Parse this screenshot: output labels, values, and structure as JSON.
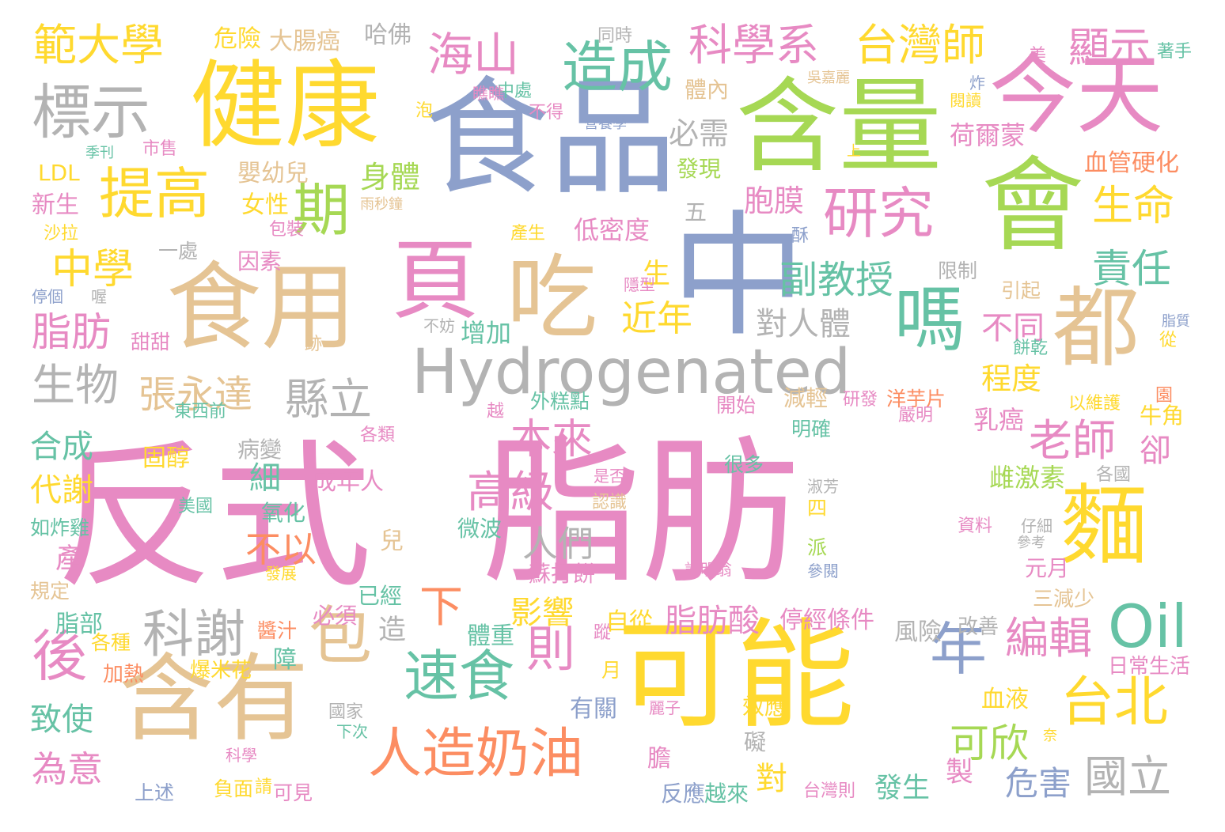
{
  "palette": {
    "pink": "#e78ac3",
    "tan": "#e5c494",
    "yellow": "#ffd92f",
    "green": "#a6d854",
    "teal": "#66c2a5",
    "blue": "#8da0cb",
    "orange": "#fc8d62",
    "gray": "#b3b3b3"
  },
  "words": [
    {
      "text": "反式",
      "color": "pink"
    },
    {
      "text": "脂肪",
      "color": "pink"
    },
    {
      "text": "食品",
      "color": "blue"
    },
    {
      "text": "中",
      "color": "blue"
    },
    {
      "text": "會",
      "color": "green"
    },
    {
      "text": "含量",
      "color": "green"
    },
    {
      "text": "今天",
      "color": "pink"
    },
    {
      "text": "健康",
      "color": "yellow"
    },
    {
      "text": "食用",
      "color": "tan"
    },
    {
      "text": "含有",
      "color": "tan"
    },
    {
      "text": "可能",
      "color": "yellow"
    },
    {
      "text": "都",
      "color": "tan"
    },
    {
      "text": "麵",
      "color": "yellow"
    },
    {
      "text": "吃",
      "color": "tan"
    },
    {
      "text": "頁",
      "color": "pink"
    },
    {
      "text": "嗎",
      "color": "teal"
    },
    {
      "text": "Hydrogenated",
      "color": "gray"
    },
    {
      "text": "人造奶油",
      "color": "orange"
    },
    {
      "text": "速食",
      "color": "teal"
    },
    {
      "text": "包",
      "color": "tan"
    },
    {
      "text": "後",
      "color": "pink"
    },
    {
      "text": "Oil",
      "color": "teal"
    },
    {
      "text": "年",
      "color": "blue"
    },
    {
      "text": "台北",
      "color": "yellow"
    },
    {
      "text": "標示",
      "color": "gray"
    },
    {
      "text": "提高",
      "color": "yellow"
    },
    {
      "text": "期",
      "color": "green"
    },
    {
      "text": "造成",
      "color": "teal"
    },
    {
      "text": "研究",
      "color": "pink"
    },
    {
      "text": "科學系",
      "color": "pink"
    },
    {
      "text": "台灣師",
      "color": "yellow"
    },
    {
      "text": "範大學",
      "color": "yellow"
    },
    {
      "text": "海山",
      "color": "pink"
    },
    {
      "text": "顯示",
      "color": "pink"
    },
    {
      "text": "生命",
      "color": "yellow"
    },
    {
      "text": "責任",
      "color": "teal"
    },
    {
      "text": "中學",
      "color": "yellow"
    },
    {
      "text": "脂肪",
      "color": "pink"
    },
    {
      "text": "生物",
      "color": "gray"
    },
    {
      "text": "張永達",
      "color": "tan"
    },
    {
      "text": "縣立",
      "color": "gray"
    },
    {
      "text": "副教授",
      "color": "teal"
    },
    {
      "text": "近年",
      "color": "yellow"
    },
    {
      "text": "本來",
      "color": "pink"
    },
    {
      "text": "高級",
      "color": "pink"
    },
    {
      "text": "老師",
      "color": "pink"
    },
    {
      "text": "人們",
      "color": "gray"
    },
    {
      "text": "不以",
      "color": "orange"
    },
    {
      "text": "科謝",
      "color": "gray"
    },
    {
      "text": "下",
      "color": "orange"
    },
    {
      "text": "則",
      "color": "pink"
    },
    {
      "text": "編輯",
      "color": "pink"
    },
    {
      "text": "可欣",
      "color": "green"
    },
    {
      "text": "國立",
      "color": "gray"
    },
    {
      "text": "危害",
      "color": "blue"
    },
    {
      "text": "脂肪酸",
      "color": "pink"
    },
    {
      "text": "影響",
      "color": "yellow"
    },
    {
      "text": "程度",
      "color": "yellow"
    },
    {
      "text": "不同",
      "color": "pink"
    },
    {
      "text": "對人體",
      "color": "gray"
    },
    {
      "text": "身體",
      "color": "green"
    },
    {
      "text": "胞膜",
      "color": "pink"
    },
    {
      "text": "必需",
      "color": "gray"
    },
    {
      "text": "低密度",
      "color": "pink"
    },
    {
      "text": "荷爾蒙",
      "color": "pink"
    },
    {
      "text": "血管硬化",
      "color": "orange"
    },
    {
      "text": "增加",
      "color": "teal"
    },
    {
      "text": "乳癌",
      "color": "pink"
    },
    {
      "text": "雌激素",
      "color": "green"
    },
    {
      "text": "合成",
      "color": "teal"
    },
    {
      "text": "代謝",
      "color": "yellow"
    },
    {
      "text": "致使",
      "color": "teal"
    },
    {
      "text": "為意",
      "color": "pink"
    },
    {
      "text": "卻",
      "color": "pink"
    },
    {
      "text": "細",
      "color": "teal"
    },
    {
      "text": "固醇",
      "color": "yellow"
    },
    {
      "text": "病變",
      "color": "gray"
    },
    {
      "text": "成年人",
      "color": "pink"
    },
    {
      "text": "氧化",
      "color": "teal"
    },
    {
      "text": "產",
      "color": "pink"
    },
    {
      "text": "脂部",
      "color": "teal"
    },
    {
      "text": "血液",
      "color": "yellow"
    },
    {
      "text": "體重",
      "color": "teal"
    },
    {
      "text": "停經條件",
      "color": "pink"
    },
    {
      "text": "風險",
      "color": "gray"
    },
    {
      "text": "危險",
      "color": "yellow"
    },
    {
      "text": "大腸癌",
      "color": "tan"
    },
    {
      "text": "哈佛",
      "color": "gray"
    },
    {
      "text": "嬰幼兒",
      "color": "tan"
    },
    {
      "text": "女性",
      "color": "yellow"
    },
    {
      "text": "新生",
      "color": "pink"
    },
    {
      "text": "LDL",
      "color": "yellow"
    },
    {
      "text": "發現",
      "color": "green"
    },
    {
      "text": "減輕",
      "color": "tan"
    },
    {
      "text": "研發",
      "color": "pink"
    },
    {
      "text": "洋芋片",
      "color": "orange"
    },
    {
      "text": "嚴明",
      "color": "pink"
    },
    {
      "text": "牛角",
      "color": "yellow"
    },
    {
      "text": "各國",
      "color": "gray"
    },
    {
      "text": "開始",
      "color": "pink"
    },
    {
      "text": "明確",
      "color": "teal"
    },
    {
      "text": "很多",
      "color": "teal"
    },
    {
      "text": "是否",
      "color": "pink"
    },
    {
      "text": "認識",
      "color": "tan"
    },
    {
      "text": "微波",
      "color": "teal"
    },
    {
      "text": "蘇打餅",
      "color": "pink"
    },
    {
      "text": "已經",
      "color": "teal"
    },
    {
      "text": "必須",
      "color": "pink"
    },
    {
      "text": "自從",
      "color": "yellow"
    },
    {
      "text": "爆米花",
      "color": "yellow"
    },
    {
      "text": "加熱",
      "color": "orange"
    },
    {
      "text": "各種",
      "color": "yellow"
    },
    {
      "text": "日常生活",
      "color": "pink"
    },
    {
      "text": "改善",
      "color": "gray"
    },
    {
      "text": "三減少",
      "color": "tan"
    },
    {
      "text": "元月",
      "color": "pink"
    },
    {
      "text": "效應",
      "color": "yellow"
    },
    {
      "text": "礙",
      "color": "gray"
    },
    {
      "text": "有關",
      "color": "blue"
    },
    {
      "text": "製",
      "color": "pink"
    },
    {
      "text": "發生",
      "color": "teal"
    },
    {
      "text": "台灣則",
      "color": "pink"
    },
    {
      "text": "反應",
      "color": "blue"
    },
    {
      "text": "越來",
      "color": "teal"
    },
    {
      "text": "負面",
      "color": "yellow"
    },
    {
      "text": "可見",
      "color": "pink"
    },
    {
      "text": "上述",
      "color": "blue"
    },
    {
      "text": "規定",
      "color": "tan"
    },
    {
      "text": "如炸雞",
      "color": "teal"
    },
    {
      "text": "美國",
      "color": "teal"
    },
    {
      "text": "東西前",
      "color": "teal"
    },
    {
      "text": "各類",
      "color": "pink"
    },
    {
      "text": "外糕點",
      "color": "teal"
    },
    {
      "text": "甜甜",
      "color": "pink"
    },
    {
      "text": "因素",
      "color": "pink"
    },
    {
      "text": "包裝",
      "color": "pink"
    },
    {
      "text": "一處",
      "color": "gray"
    },
    {
      "text": "沙拉",
      "color": "yellow"
    },
    {
      "text": "五",
      "color": "gray"
    },
    {
      "text": "產生",
      "color": "yellow"
    },
    {
      "text": "酥",
      "color": "blue"
    },
    {
      "text": "限制",
      "color": "gray"
    },
    {
      "text": "引起",
      "color": "tan"
    },
    {
      "text": "生",
      "color": "yellow"
    },
    {
      "text": "體內",
      "color": "tan"
    },
    {
      "text": "中處",
      "color": "teal"
    },
    {
      "text": "不得",
      "color": "pink"
    },
    {
      "text": "營養學",
      "color": "blue"
    },
    {
      "text": "同時",
      "color": "gray"
    },
    {
      "text": "美",
      "color": "pink"
    },
    {
      "text": "著手",
      "color": "teal"
    },
    {
      "text": "炸",
      "color": "blue"
    },
    {
      "text": "閱讀",
      "color": "yellow"
    },
    {
      "text": "吳嘉麗",
      "color": "tan"
    },
    {
      "text": "上",
      "color": "yellow"
    },
    {
      "text": "雨秒鐘",
      "color": "tan"
    },
    {
      "text": "市售",
      "color": "pink"
    },
    {
      "text": "季刊",
      "color": "teal"
    },
    {
      "text": "泡",
      "color": "yellow"
    },
    {
      "text": "瞧瞧",
      "color": "pink"
    },
    {
      "text": "兒",
      "color": "tan"
    },
    {
      "text": "四",
      "color": "yellow"
    },
    {
      "text": "派",
      "color": "green"
    },
    {
      "text": "資料",
      "color": "pink"
    },
    {
      "text": "仔細",
      "color": "gray"
    },
    {
      "text": "參考",
      "color": "gray"
    },
    {
      "text": "許明翁",
      "color": "pink"
    },
    {
      "text": "參閱",
      "color": "blue"
    },
    {
      "text": "淑芳",
      "color": "gray"
    },
    {
      "text": "醬汁",
      "color": "orange"
    },
    {
      "text": "月",
      "color": "yellow"
    },
    {
      "text": "跡",
      "color": "tan"
    },
    {
      "text": "國家",
      "color": "gray"
    },
    {
      "text": "下次",
      "color": "teal"
    },
    {
      "text": "科學",
      "color": "pink"
    },
    {
      "text": "麗子",
      "color": "pink"
    },
    {
      "text": "從",
      "color": "yellow"
    },
    {
      "text": "脂質",
      "color": "blue"
    },
    {
      "text": "以維護",
      "color": "yellow"
    },
    {
      "text": "園",
      "color": "orange"
    },
    {
      "text": "餅乾",
      "color": "teal"
    },
    {
      "text": "不妨",
      "color": "gray"
    },
    {
      "text": "隱型",
      "color": "pink"
    },
    {
      "text": "停個",
      "color": "blue"
    },
    {
      "text": "喔",
      "color": "gray"
    },
    {
      "text": "越",
      "color": "pink"
    },
    {
      "text": "膽",
      "color": "pink"
    },
    {
      "text": "障",
      "color": "teal"
    },
    {
      "text": "對",
      "color": "yellow"
    },
    {
      "text": "造",
      "color": "gray"
    },
    {
      "text": "發展",
      "color": "yellow"
    },
    {
      "text": "蹤",
      "color": "pink"
    },
    {
      "text": "請",
      "color": "yellow"
    },
    {
      "text": "奈",
      "color": "yellow"
    }
  ]
}
